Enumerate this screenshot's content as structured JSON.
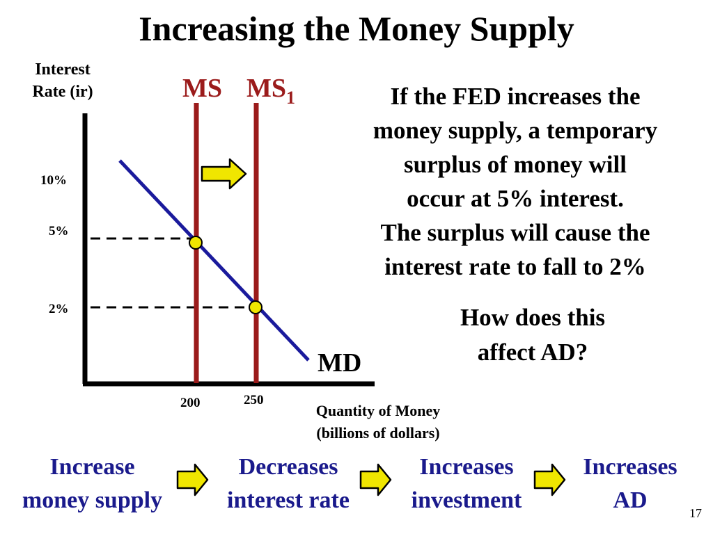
{
  "title": "Increasing the Money Supply",
  "graph": {
    "y_axis_label": "Interest\nRate (ir)",
    "y_ticks": [
      "10%",
      "5%",
      "2%"
    ],
    "x_ticks": [
      "200",
      "250"
    ],
    "x_axis_label": "Quantity of Money\n(billions of dollars)",
    "ms_label": "MS",
    "ms1_label_main": "MS",
    "ms1_label_sub": "1",
    "md_label": "MD",
    "colors": {
      "supply_line": "#9b1b1b",
      "demand_line": "#1a1a9c",
      "equilibrium_point": "#f0e600",
      "shift_arrow": "#f0e600"
    }
  },
  "explanation": "If the FED increases the money supply, a temporary surplus of money will occur at 5% interest. The surplus will cause the interest rate to fall to 2%",
  "explanation_lines": [
    "If the FED increases the",
    "money supply, a temporary",
    "surplus of money will",
    "occur at 5% interest.",
    "The surplus will cause the",
    "interest rate to fall to 2%"
  ],
  "question": "How does this\naffect AD?",
  "chain": [
    "Increase\nmoney supply",
    "Decreases\ninterest rate",
    "Increases\ninvestment",
    "Increases\nAD"
  ],
  "page_number": "17"
}
